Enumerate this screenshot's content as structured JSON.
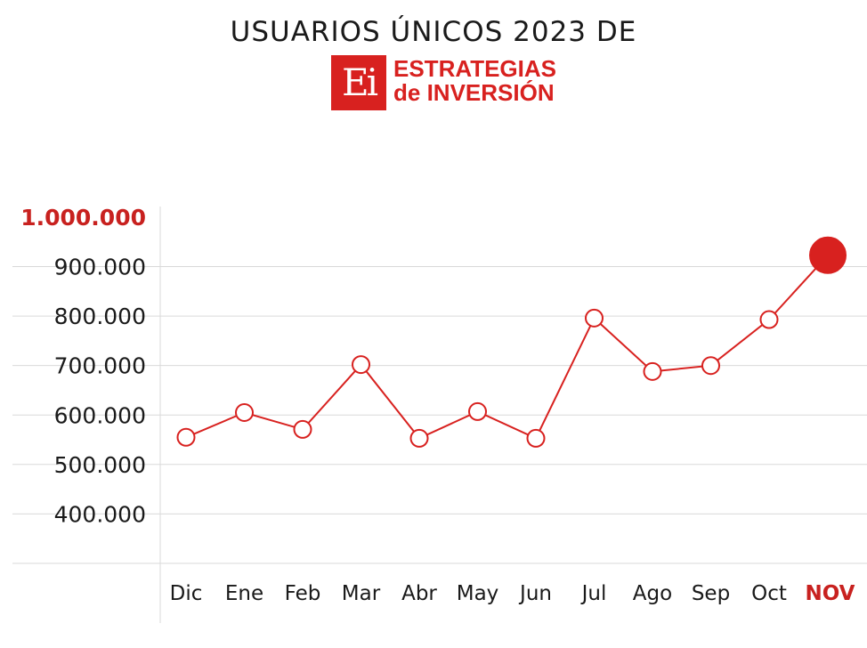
{
  "header": {
    "title": "USUARIOS ÚNICOS 2023 DE",
    "logo_mark": "Ei",
    "logo_line1": "ESTRATEGIAS",
    "logo_line2": "de INVERSIÓN"
  },
  "colors": {
    "accent": "#d8211f",
    "line": "#d8211f",
    "grid": "#d9d9d9",
    "text": "#1a1a1a"
  },
  "chart_data": {
    "type": "line",
    "title": "USUARIOS ÚNICOS 2023 DE",
    "xlabel": "",
    "ylabel": "",
    "categories": [
      "Dic",
      "Ene",
      "Feb",
      "Mar",
      "Abr",
      "May",
      "Jun",
      "Jul",
      "Ago",
      "Sep",
      "Oct",
      "NOV"
    ],
    "highlight_category": "NOV",
    "series": [
      {
        "values": [
          555000,
          605000,
          571000,
          702000,
          553000,
          607000,
          553000,
          796000,
          688000,
          700000,
          793000,
          923000
        ]
      }
    ],
    "y_ticks": [
      400000,
      500000,
      600000,
      700000,
      800000,
      900000,
      1000000
    ],
    "y_tick_labels": [
      "400.000",
      "500.000",
      "600.000",
      "700.000",
      "800.000",
      "900.000",
      "1.000.000"
    ],
    "highlight_tick": "1.000.000",
    "ylim": [
      300000,
      1000000
    ],
    "grid": true,
    "legend": "none"
  }
}
